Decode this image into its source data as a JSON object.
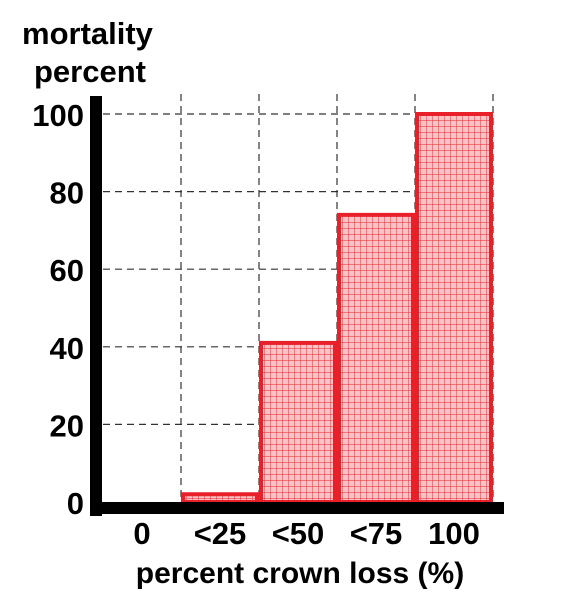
{
  "chart_data": {
    "type": "bar",
    "title": "",
    "ylabel_lines": [
      "mortality",
      "percent"
    ],
    "xlabel": "percent crown loss (%)",
    "categories": [
      "0",
      "<25",
      "<50",
      "<75",
      "100"
    ],
    "values": [
      0,
      2,
      41,
      74,
      100
    ],
    "ylim": [
      0,
      100
    ],
    "yticks": [
      "0",
      "20",
      "40",
      "60",
      "80",
      "100"
    ],
    "grid": true,
    "grid_style": "dashed",
    "legend": "none"
  },
  "colors": {
    "bar_edge": "#e8202a",
    "bar_fill": "#f6c3c6",
    "hatch": "#e8202a",
    "axis": "#000000",
    "grid": "#333333"
  }
}
